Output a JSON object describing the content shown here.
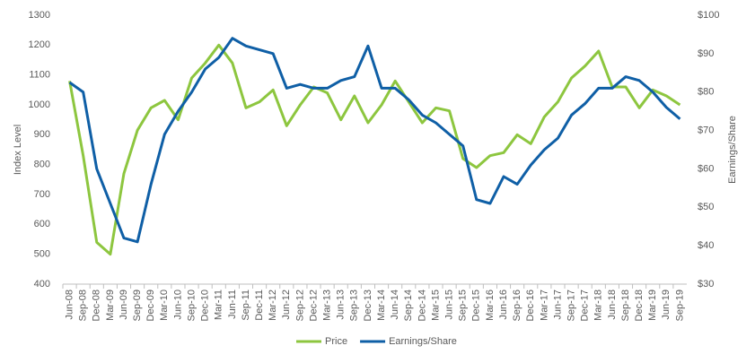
{
  "chart_data": {
    "type": "line",
    "y_label": "Index Level",
    "y2_label": "Earnings/Share",
    "categories": [
      "Jun-08",
      "Sep-08",
      "Dec-08",
      "Mar-09",
      "Jun-09",
      "Sep-09",
      "Dec-09",
      "Mar-10",
      "Jun-10",
      "Sep-10",
      "Dec-10",
      "Mar-11",
      "Jun-11",
      "Sep-11",
      "Dec-11",
      "Mar-12",
      "Jun-12",
      "Sep-12",
      "Dec-12",
      "Mar-13",
      "Jun-13",
      "Sep-13",
      "Dec-13",
      "Mar-14",
      "Jun-14",
      "Sep-14",
      "Dec-14",
      "Mar-15",
      "Jun-15",
      "Sep-15",
      "Dec-15",
      "Mar-16",
      "Jun-16",
      "Sep-16",
      "Dec-16",
      "Mar-17",
      "Jun-17",
      "Sep-17",
      "Dec-17",
      "Mar-18",
      "Jun-18",
      "Sep-18",
      "Dec-18",
      "Mar-19",
      "Jun-19",
      "Sep-19"
    ],
    "series": [
      {
        "name": "Price",
        "color": "#8dc63f",
        "values": [
          1080,
          830,
          540,
          500,
          770,
          915,
          990,
          1015,
          950,
          1090,
          1140,
          1200,
          1140,
          990,
          1010,
          1050,
          930,
          1000,
          1060,
          1040,
          950,
          1030,
          940,
          1000,
          1080,
          1010,
          940,
          990,
          980,
          820,
          790,
          830,
          840,
          900,
          870,
          960,
          1010,
          1090,
          1130,
          1180,
          1060,
          1060,
          990,
          1050,
          1030,
          1000
        ]
      },
      {
        "name": "Earnings/Share",
        "color": "#0f5fa6",
        "axis": "y2",
        "values": [
          82.5,
          80,
          60,
          51,
          42,
          41,
          56,
          69,
          75,
          80,
          86,
          89,
          94,
          92,
          91,
          90,
          81,
          82,
          81,
          81,
          83,
          84,
          92,
          81,
          81,
          78,
          74,
          72,
          69,
          66,
          52,
          51,
          58,
          56,
          61,
          65,
          68,
          74,
          77,
          81,
          81,
          84,
          83,
          80,
          76,
          73
        ]
      }
    ],
    "ylim": [
      400,
      1300
    ],
    "yticks": [
      400,
      500,
      600,
      700,
      800,
      900,
      1000,
      1100,
      1200,
      1300
    ],
    "y2lim": [
      30,
      100
    ],
    "y2ticks": [
      {
        "value": 30,
        "label": "$30"
      },
      {
        "value": 40,
        "label": "$40"
      },
      {
        "value": 50,
        "label": "$50"
      },
      {
        "value": 60,
        "label": "$60"
      },
      {
        "value": 70,
        "label": "$70"
      },
      {
        "value": 80,
        "label": "$80"
      },
      {
        "value": 90,
        "label": "$90"
      },
      {
        "value": 100,
        "label": "$100"
      }
    ],
    "legend": "bottom"
  }
}
